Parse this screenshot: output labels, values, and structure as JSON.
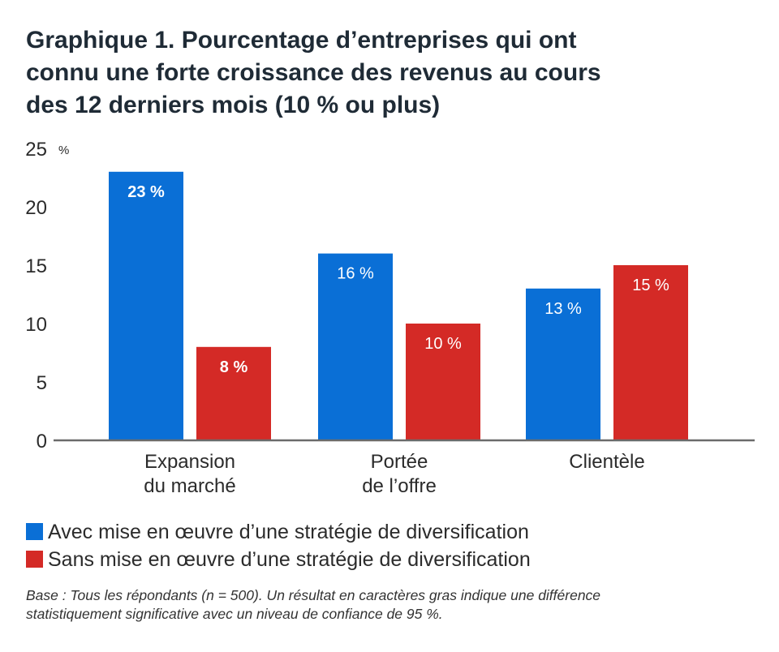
{
  "title_lines": [
    "Graphique 1. Pourcentage d’entreprises qui ont",
    "connu une forte croissance des revenus au cours",
    "des 12 derniers mois (10 % ou plus)"
  ],
  "colors": {
    "series_1": "#0a6fd6",
    "series_2": "#d42a26",
    "axis": "#6b6b6b",
    "text": "#2b2b2b"
  },
  "chart_data": {
    "type": "bar",
    "title": "Graphique 1. Pourcentage d’entreprises qui ont connu une forte croissance des revenus au cours des 12 derniers mois (10 % ou plus)",
    "categories": [
      [
        "Expansion",
        "du marché"
      ],
      [
        "Portée",
        "de l’offre"
      ],
      [
        "Clientèle"
      ]
    ],
    "series": [
      {
        "name": "Avec mise en œuvre d’une stratégie de diversification",
        "values": [
          23,
          16,
          13
        ],
        "labels": [
          "23 %",
          "16 %",
          "13 %"
        ],
        "bold": [
          true,
          false,
          false
        ]
      },
      {
        "name": "Sans mise en œuvre d’une stratégie de diversification",
        "values": [
          8,
          10,
          15
        ],
        "labels": [
          "8 %",
          "10 %",
          "15 %"
        ],
        "bold": [
          true,
          false,
          false
        ]
      }
    ],
    "y_ticks": [
      "0",
      "5",
      "10",
      "15",
      "20",
      "25"
    ],
    "y_unit": "%",
    "ylim": [
      0,
      25
    ],
    "grid": false,
    "legend_position": "bottom-left"
  },
  "note_lines": [
    "Base : Tous les répondants (n = 500). Un résultat en caractères gras indique une différence",
    "statistiquement significative avec un niveau de confiance de 95 %."
  ]
}
